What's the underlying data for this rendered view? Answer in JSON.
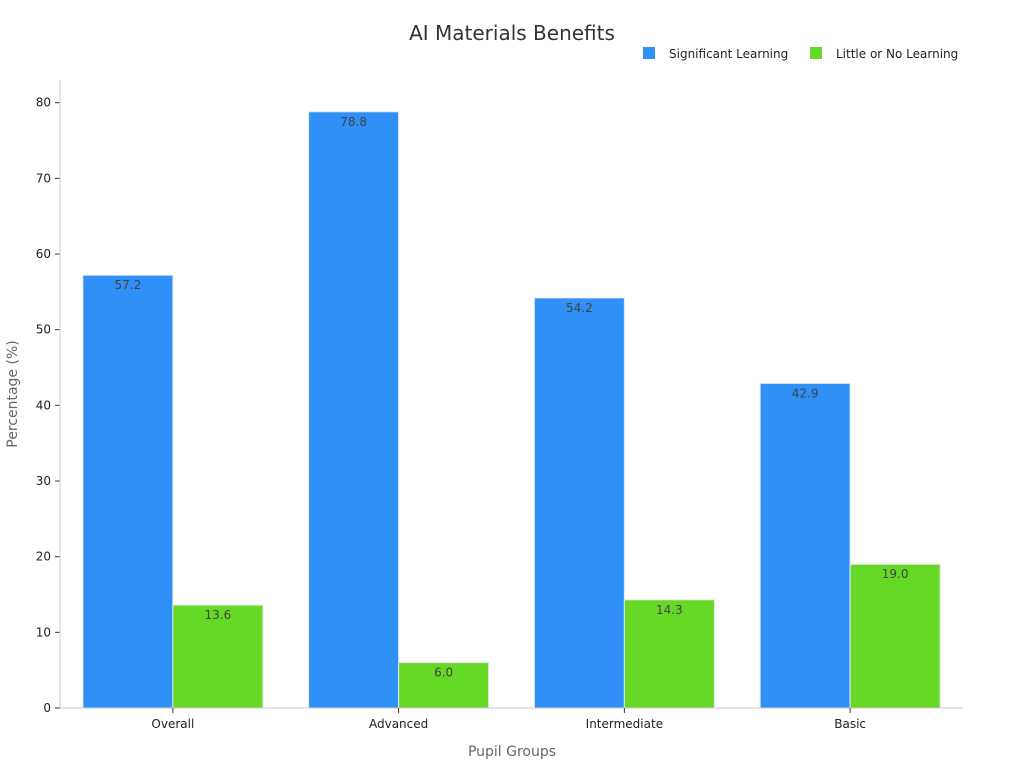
{
  "chart_data": {
    "type": "bar",
    "title": "AI Materials Benefits",
    "xlabel": "Pupil Groups",
    "ylabel": "Percentage (%)",
    "categories": [
      "Overall",
      "Advanced",
      "Intermediate",
      "Basic"
    ],
    "series": [
      {
        "name": "Significant Learning",
        "color": "#2f91f7",
        "values": [
          57.2,
          78.8,
          54.2,
          42.9
        ],
        "labels": [
          "57.2",
          "78.8",
          "54.2",
          "42.9"
        ]
      },
      {
        "name": "Little or No Learning",
        "color": "#66d926",
        "values": [
          13.6,
          6.0,
          14.3,
          19.0
        ],
        "labels": [
          "13.6",
          "6.0",
          "14.3",
          "19.0"
        ]
      }
    ],
    "ylim": [
      0,
      83
    ],
    "yticks": [
      0,
      10,
      20,
      30,
      40,
      50,
      60,
      70,
      80
    ],
    "ytick_labels": [
      "0",
      "10",
      "20",
      "30",
      "40",
      "50",
      "60",
      "70",
      "80"
    ],
    "grid": false,
    "legend_position": "top-right"
  }
}
